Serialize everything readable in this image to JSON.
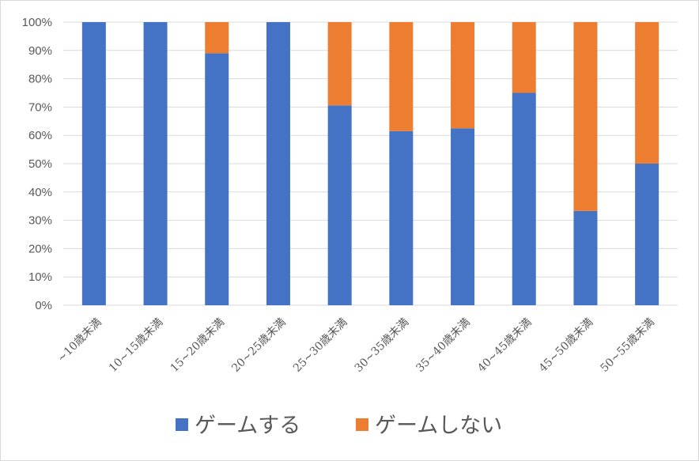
{
  "chart_data": {
    "type": "bar",
    "stacked": true,
    "percent": true,
    "categories": [
      "~10歳未満",
      "10~15歳未満",
      "15~20歳未満",
      "20~25歳未満",
      "25~30歳未満",
      "30~35歳未満",
      "35~40歳未満",
      "40~45歳未満",
      "45~50歳未満",
      "50~55歳未満"
    ],
    "series": [
      {
        "name": "ゲームする",
        "color": "#4472c4",
        "values": [
          100,
          100,
          89,
          100,
          70.6,
          61.5,
          62.5,
          75,
          33.3,
          50
        ]
      },
      {
        "name": "ゲームしない",
        "color": "#ed7d31",
        "values": [
          0,
          0,
          11,
          0,
          29.4,
          38.5,
          37.5,
          25,
          66.7,
          50
        ]
      }
    ],
    "ylim": [
      0,
      100
    ],
    "yticks": [
      "0%",
      "10%",
      "20%",
      "30%",
      "40%",
      "50%",
      "60%",
      "70%",
      "80%",
      "90%",
      "100%"
    ],
    "grid": true,
    "legend_position": "bottom"
  }
}
